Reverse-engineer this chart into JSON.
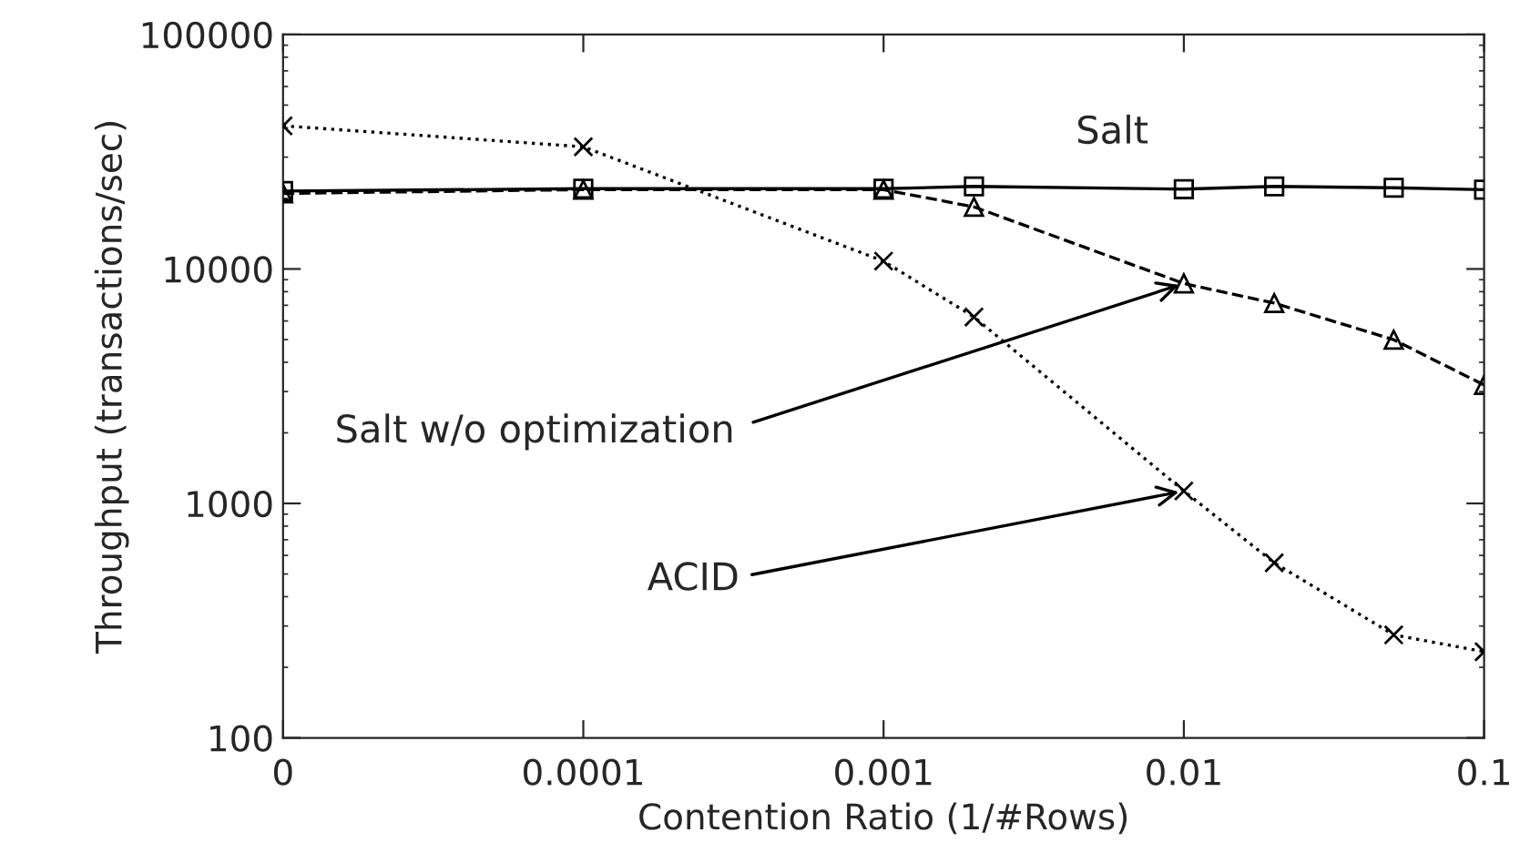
{
  "chart_data": {
    "type": "line",
    "xlabel": "Contention Ratio (1/#Rows)",
    "ylabel": "Throughput (transactions/sec)",
    "log": "xy",
    "x": [
      1e-05,
      0.0001,
      0.001,
      0.002,
      0.01,
      0.02,
      0.05,
      0.1
    ],
    "xlim": [
      1e-05,
      0.1
    ],
    "xticks": [
      {
        "value": 1e-05,
        "label": "0"
      },
      0.0001,
      0.001,
      0.01,
      0.1
    ],
    "ylim": [
      100,
      100000
    ],
    "yticks": [
      100,
      1000,
      10000,
      100000
    ],
    "grid": false,
    "legend": false,
    "series": [
      {
        "name": "Salt",
        "color": "#000000",
        "marker": "square",
        "line_style": "solid",
        "values": [
          21500,
          22000,
          22000,
          22500,
          21900,
          22500,
          22200,
          21800
        ]
      },
      {
        "name": "Salt w/o optimization",
        "color": "#000000",
        "marker": "triangle",
        "line_style": "dashed",
        "values": [
          21000,
          21800,
          21800,
          18400,
          8670,
          7150,
          4990,
          3200
        ]
      },
      {
        "name": "ACID",
        "color": "#000000",
        "marker": "cross",
        "line_style": "dotted",
        "values": [
          40800,
          33200,
          10800,
          6240,
          1130,
          558,
          275,
          233
        ]
      }
    ]
  }
}
